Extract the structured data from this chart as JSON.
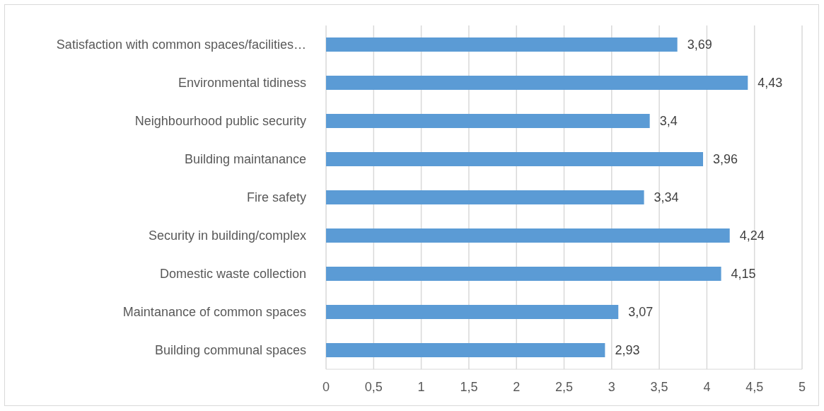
{
  "chart_data": {
    "type": "bar",
    "orientation": "horizontal",
    "categories": [
      "Satisfaction with common spaces/facilities…",
      "Environmental tidiness",
      "Neighbourhood public security",
      "Building maintanance",
      "Fire safety",
      "Security in building/complex",
      "Domestic waste collection",
      "Maintanance of common spaces",
      "Building communal spaces"
    ],
    "values": [
      3.69,
      4.43,
      3.4,
      3.96,
      3.34,
      4.24,
      4.15,
      3.07,
      2.93
    ],
    "value_labels": [
      "3,69",
      "4,43",
      "3,4",
      "3,96",
      "3,34",
      "4,24",
      "4,15",
      "3,07",
      "2,93"
    ],
    "color": "#5b9bd5",
    "xlim": [
      0,
      5
    ],
    "xticks": [
      0,
      {
        "value": 0.5,
        "label": "0,5"
      },
      1,
      {
        "value": 1.5,
        "label": "1,5"
      },
      2,
      {
        "value": 2.5,
        "label": "2,5"
      },
      3,
      {
        "value": 3.5,
        "label": "3,5"
      },
      4,
      {
        "value": 4.5,
        "label": "4,5"
      },
      5
    ],
    "grid": "x"
  }
}
